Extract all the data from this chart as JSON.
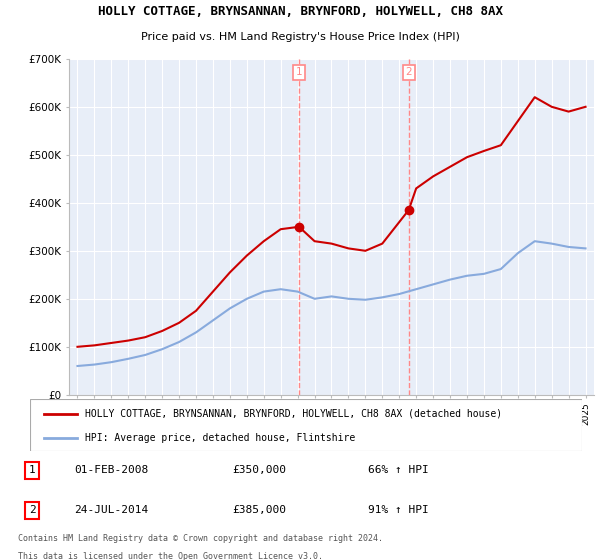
{
  "title": "HOLLY COTTAGE, BRYNSANNAN, BRYNFORD, HOLYWELL, CH8 8AX",
  "subtitle": "Price paid vs. HM Land Registry's House Price Index (HPI)",
  "title_fontsize": 9,
  "subtitle_fontsize": 8,
  "ylim": [
    0,
    700000
  ],
  "yticks": [
    0,
    100000,
    200000,
    300000,
    400000,
    500000,
    600000,
    700000
  ],
  "ytick_labels": [
    "£0",
    "£100K",
    "£200K",
    "£300K",
    "£400K",
    "£500K",
    "£600K",
    "£700K"
  ],
  "xlim_start": 1994.5,
  "xlim_end": 2025.5,
  "sale1_year": 2008.08,
  "sale1_price": 350000,
  "sale1_label": "01-FEB-2008",
  "sale1_pct": "66%",
  "sale2_year": 2014.56,
  "sale2_price": 385000,
  "sale2_label": "24-JUL-2014",
  "sale2_pct": "91%",
  "red_line_color": "#cc0000",
  "blue_line_color": "#88aadd",
  "vline_color": "#ff8888",
  "background_color": "#ffffff",
  "plot_bg_color": "#e8eef8",
  "legend_label_red": "HOLLY COTTAGE, BRYNSANNAN, BRYNFORD, HOLYWELL, CH8 8AX (detached house)",
  "legend_label_blue": "HPI: Average price, detached house, Flintshire",
  "footer1": "Contains HM Land Registry data © Crown copyright and database right 2024.",
  "footer2": "This data is licensed under the Open Government Licence v3.0.",
  "hpi_years": [
    1995,
    1996,
    1997,
    1998,
    1999,
    2000,
    2001,
    2002,
    2003,
    2004,
    2005,
    2006,
    2007,
    2008,
    2009,
    2010,
    2011,
    2012,
    2013,
    2014,
    2015,
    2016,
    2017,
    2018,
    2019,
    2020,
    2021,
    2022,
    2023,
    2024,
    2025
  ],
  "hpi_values": [
    60000,
    63000,
    68000,
    75000,
    83000,
    95000,
    110000,
    130000,
    155000,
    180000,
    200000,
    215000,
    220000,
    215000,
    200000,
    205000,
    200000,
    198000,
    203000,
    210000,
    220000,
    230000,
    240000,
    248000,
    252000,
    262000,
    295000,
    320000,
    315000,
    308000,
    305000
  ],
  "red_years": [
    1995,
    1996,
    1997,
    1998,
    1999,
    2000,
    2001,
    2002,
    2003,
    2004,
    2005,
    2006,
    2007,
    2008.08,
    2009,
    2010,
    2011,
    2012,
    2013,
    2014.56,
    2015,
    2016,
    2017,
    2018,
    2019,
    2020,
    2021,
    2022,
    2023,
    2024,
    2025
  ],
  "red_values": [
    100000,
    103000,
    108000,
    113000,
    120000,
    133000,
    150000,
    175000,
    215000,
    255000,
    290000,
    320000,
    345000,
    350000,
    320000,
    315000,
    305000,
    300000,
    315000,
    385000,
    430000,
    455000,
    475000,
    495000,
    508000,
    520000,
    570000,
    620000,
    600000,
    590000,
    600000
  ]
}
